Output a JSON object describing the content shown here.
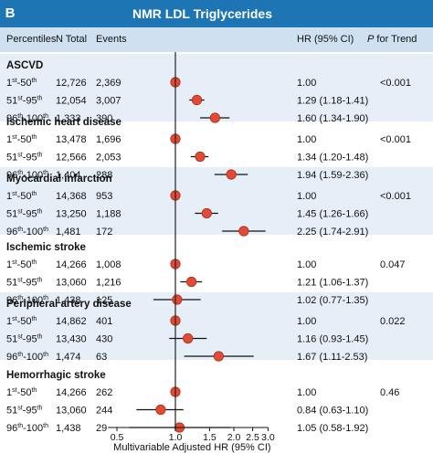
{
  "panel_label": "B",
  "title": "NMR LDL Triglycerides",
  "headers": {
    "percentiles": "Percentiles",
    "n_total": "N Total",
    "events": "Events",
    "hr": "HR (95% CI)",
    "p_italic": "P",
    "p_rest": " for Trend"
  },
  "chart_data": {
    "type": "forest",
    "x_scale": "log",
    "xlim": [
      0.45,
      3.0
    ],
    "ref_line": 1.0,
    "xticks": [
      0.5,
      1.0,
      1.5,
      2.0,
      2.5,
      3.0
    ],
    "xtick_labels": [
      "0.5",
      "1.0",
      "1.5",
      "2.0",
      "2.5",
      "3.0"
    ],
    "xlabel": "Multivariable Adjusted HR (95% CI)",
    "groups": [
      {
        "name": "ASCVD",
        "p_trend": "<0.001",
        "rows": [
          {
            "base": "1",
            "sup": "st",
            "rest": "-50",
            "sup2": "th",
            "n": "12,726",
            "events": "2,369",
            "hr": 1.0,
            "lo": null,
            "hi": null,
            "ci_text": "1.00"
          },
          {
            "base": "51",
            "sup": "st",
            "rest": "-95",
            "sup2": "th",
            "n": "12,054",
            "events": "3,007",
            "hr": 1.29,
            "lo": 1.18,
            "hi": 1.41,
            "ci_text": "1.29 (1.18-1.41)"
          },
          {
            "base": "96",
            "sup": "th",
            "rest": "-100",
            "sup2": "th",
            "n": "1,333",
            "events": "390",
            "hr": 1.6,
            "lo": 1.34,
            "hi": 1.9,
            "ci_text": "1.60 (1.34-1.90)"
          }
        ]
      },
      {
        "name": "Ischemic heart disease",
        "p_trend": "<0.001",
        "rows": [
          {
            "base": "1",
            "sup": "st",
            "rest": "-50",
            "sup2": "th",
            "n": "13,478",
            "events": "1,696",
            "hr": 1.0,
            "lo": null,
            "hi": null,
            "ci_text": "1.00"
          },
          {
            "base": "51",
            "sup": "st",
            "rest": "-95",
            "sup2": "th",
            "n": "12,566",
            "events": "2,053",
            "hr": 1.34,
            "lo": 1.2,
            "hi": 1.48,
            "ci_text": "1.34 (1.20-1.48)"
          },
          {
            "base": "96",
            "sup": "th",
            "rest": "-100",
            "sup2": "th",
            "n": "1,404",
            "events": "288",
            "hr": 1.94,
            "lo": 1.59,
            "hi": 2.36,
            "ci_text": "1.94 (1.59-2.36)"
          }
        ]
      },
      {
        "name": "Myocardial infarction",
        "p_trend": "<0.001",
        "rows": [
          {
            "base": "1",
            "sup": "st",
            "rest": "-50",
            "sup2": "th",
            "n": "14,368",
            "events": "953",
            "hr": 1.0,
            "lo": null,
            "hi": null,
            "ci_text": "1.00"
          },
          {
            "base": "51",
            "sup": "st",
            "rest": "-95",
            "sup2": "th",
            "n": "13,250",
            "events": "1,188",
            "hr": 1.45,
            "lo": 1.26,
            "hi": 1.66,
            "ci_text": "1.45 (1.26-1.66)"
          },
          {
            "base": "96",
            "sup": "th",
            "rest": "-100",
            "sup2": "th",
            "n": "1,481",
            "events": "172",
            "hr": 2.25,
            "lo": 1.74,
            "hi": 2.91,
            "ci_text": "2.25 (1.74-2.91)"
          }
        ]
      },
      {
        "name": "Ischemic stroke",
        "p_trend": "0.047",
        "rows": [
          {
            "base": "1",
            "sup": "st",
            "rest": "-50",
            "sup2": "th",
            "n": "14,266",
            "events": "1,008",
            "hr": 1.0,
            "lo": null,
            "hi": null,
            "ci_text": "1.00"
          },
          {
            "base": "51",
            "sup": "st",
            "rest": "-95",
            "sup2": "th",
            "n": "13,060",
            "events": "1,216",
            "hr": 1.21,
            "lo": 1.06,
            "hi": 1.37,
            "ci_text": "1.21 (1.06-1.37)"
          },
          {
            "base": "96",
            "sup": "th",
            "rest": "-100",
            "sup2": "th",
            "n": "1,438",
            "events": "125",
            "hr": 1.02,
            "lo": 0.77,
            "hi": 1.35,
            "ci_text": "1.02 (0.77-1.35)"
          }
        ]
      },
      {
        "name": "Peripheral artery disease",
        "p_trend": "0.022",
        "rows": [
          {
            "base": "1",
            "sup": "st",
            "rest": "-50",
            "sup2": "th",
            "n": "14,862",
            "events": "401",
            "hr": 1.0,
            "lo": null,
            "hi": null,
            "ci_text": "1.00"
          },
          {
            "base": "51",
            "sup": "st",
            "rest": "-95",
            "sup2": "th",
            "n": "13,430",
            "events": "430",
            "hr": 1.16,
            "lo": 0.93,
            "hi": 1.45,
            "ci_text": "1.16 (0.93-1.45)"
          },
          {
            "base": "96",
            "sup": "th",
            "rest": "-100",
            "sup2": "th",
            "n": "1,474",
            "events": "63",
            "hr": 1.67,
            "lo": 1.11,
            "hi": 2.53,
            "ci_text": "1.67 (1.11-2.53)"
          }
        ]
      },
      {
        "name": "Hemorrhagic stroke",
        "p_trend": "0.46",
        "rows": [
          {
            "base": "1",
            "sup": "st",
            "rest": "-50",
            "sup2": "th",
            "n": "14,266",
            "events": "262",
            "hr": 1.0,
            "lo": null,
            "hi": null,
            "ci_text": "1.00"
          },
          {
            "base": "51",
            "sup": "st",
            "rest": "-95",
            "sup2": "th",
            "n": "13,060",
            "events": "244",
            "hr": 0.84,
            "lo": 0.63,
            "hi": 1.1,
            "ci_text": "0.84 (0.63-1.10)"
          },
          {
            "base": "96",
            "sup": "th",
            "rest": "-100",
            "sup2": "th",
            "n": "1,438",
            "events": "29",
            "hr": 1.05,
            "lo": 0.58,
            "hi": 1.92,
            "ci_text": "1.05 (0.58-1.92)"
          }
        ]
      }
    ]
  },
  "colors": {
    "header_bar": "#1d76b3",
    "column_header": "#cfe1f1",
    "band": "#e6eff8",
    "marker": "#e34a33",
    "marker_edge": "#a63121",
    "ci_line": "#111111",
    "ref_line": "#222222"
  }
}
